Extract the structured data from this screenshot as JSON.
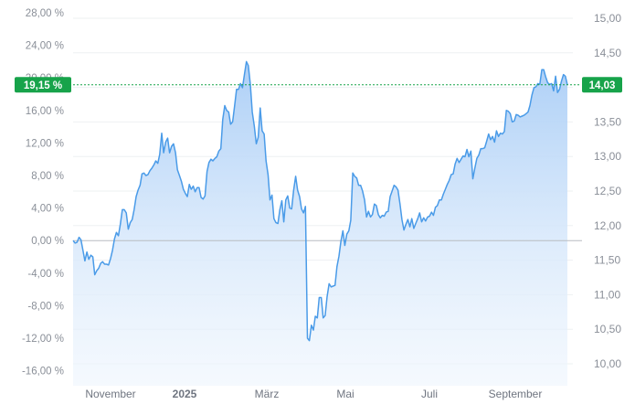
{
  "chart_data": {
    "type": "area",
    "title": "",
    "xlabel": "",
    "ylabel": "",
    "x_ticks": [
      "November",
      "2025",
      "März",
      "Mai",
      "Juli",
      "September"
    ],
    "bold_x_ticks": [
      "2025"
    ],
    "y_left_ticks": [
      "28,00 %",
      "24,00 %",
      "20,00 %",
      "16,00 %",
      "12,00 %",
      "8,00 %",
      "4,00 %",
      "0,00 %",
      "-4,00 %",
      "-8,00 %",
      "-12,00 %",
      "-16,00 %"
    ],
    "y_right_ticks": [
      "15,00",
      "14,50",
      "14,00",
      "13,50",
      "13,00",
      "12,50",
      "12,00",
      "11,50",
      "11,00",
      "10,50",
      "10,00"
    ],
    "y_left_range": [
      -16,
      28
    ],
    "y_right_range": [
      10.0,
      15.0
    ],
    "current_percent_label": "19,15 %",
    "current_price_label": "14,03",
    "current_percent": 19.15,
    "grid": true,
    "colors": {
      "line": "#4a9be8",
      "fill": "#cfe3fa",
      "badge": "#17a34a",
      "zero_line": "#b8bcc2",
      "grid": "#eef0f2"
    },
    "series": [
      {
        "values": [
          0.0,
          -0.3,
          -0.2,
          0.4,
          0.1,
          -1.2,
          -2.5,
          -1.4,
          -2.3,
          -1.8,
          -2.0,
          -4.2,
          -3.7,
          -3.4,
          -2.8,
          -2.6,
          -2.9,
          -2.9,
          -3.0,
          -2.2,
          -1.2,
          0.2,
          1.0,
          0.6,
          2.0,
          3.8,
          3.8,
          3.4,
          1.4,
          2.2,
          2.6,
          3.8,
          5.4,
          6.2,
          6.8,
          8.2,
          8.3,
          8.0,
          8.1,
          8.6,
          8.9,
          9.3,
          9.8,
          9.5,
          10.6,
          13.2,
          10.8,
          12.1,
          12.6,
          10.8,
          11.6,
          11.9,
          10.8,
          8.7,
          8.0,
          7.3,
          6.3,
          5.8,
          5.4,
          6.9,
          6.3,
          6.7,
          6.0,
          6.5,
          6.5,
          5.3,
          5.1,
          5.5,
          8.5,
          9.6,
          10.0,
          9.8,
          10.1,
          10.3,
          11.0,
          11.3,
          14.9,
          16.6,
          16.0,
          15.8,
          14.3,
          14.6,
          16.5,
          18.6,
          18.6,
          19.3,
          18.8,
          20.4,
          22.0,
          21.5,
          19.2,
          15.8,
          14.1,
          11.9,
          12.7,
          16.3,
          13.5,
          13.1,
          9.8,
          8.1,
          5.0,
          5.6,
          2.7,
          2.2,
          2.1,
          3.8,
          4.9,
          2.3,
          5.0,
          5.5,
          4.0,
          3.9,
          6.2,
          7.9,
          6.2,
          5.4,
          3.9,
          3.4,
          4.2,
          -12.0,
          -12.3,
          -10.4,
          -11.0,
          -9.3,
          -9.5,
          -7.0,
          -7.0,
          -9.5,
          -9.2,
          -6.9,
          -5.3,
          -5.7,
          -5.6,
          -5.5,
          -3.2,
          -1.9,
          -0.1,
          1.2,
          -0.6,
          0.8,
          1.2,
          2.5,
          8.3,
          7.9,
          7.7,
          6.8,
          6.8,
          6.1,
          5.0,
          2.9,
          3.6,
          2.9,
          3.2,
          4.5,
          4.3,
          3.2,
          2.8,
          3.1,
          3.0,
          3.5,
          3.6,
          5.4,
          6.1,
          6.8,
          6.6,
          6.2,
          4.5,
          2.6,
          1.3,
          2.0,
          2.6,
          1.7,
          2.7,
          1.5,
          2.1,
          2.7,
          3.4,
          2.3,
          2.8,
          2.4,
          2.9,
          3.0,
          3.5,
          3.1,
          4.1,
          4.3,
          5.0,
          5.0,
          5.7,
          6.3,
          6.9,
          7.4,
          8.1,
          8.2,
          9.4,
          10.1,
          9.6,
          10.0,
          10.4,
          10.3,
          11.2,
          10.3,
          11.0,
          7.6,
          8.9,
          10.1,
          10.5,
          11.3,
          11.3,
          11.4,
          12.2,
          13.1,
          12.4,
          12.8,
          12.1,
          13.5,
          12.8,
          13.2,
          13.1,
          13.4,
          16.0,
          15.9,
          15.6,
          14.6,
          14.7,
          15.5,
          15.4,
          15.2,
          15.3,
          15.4,
          15.6,
          15.8,
          16.6,
          17.9,
          18.8,
          18.9,
          19.3,
          19.2,
          21.0,
          21.0,
          20.1,
          19.4,
          19.2,
          19.3,
          18.4,
          20.2,
          18.2,
          18.6,
          19.6,
          20.4,
          20.2,
          19.15
        ]
      }
    ]
  }
}
